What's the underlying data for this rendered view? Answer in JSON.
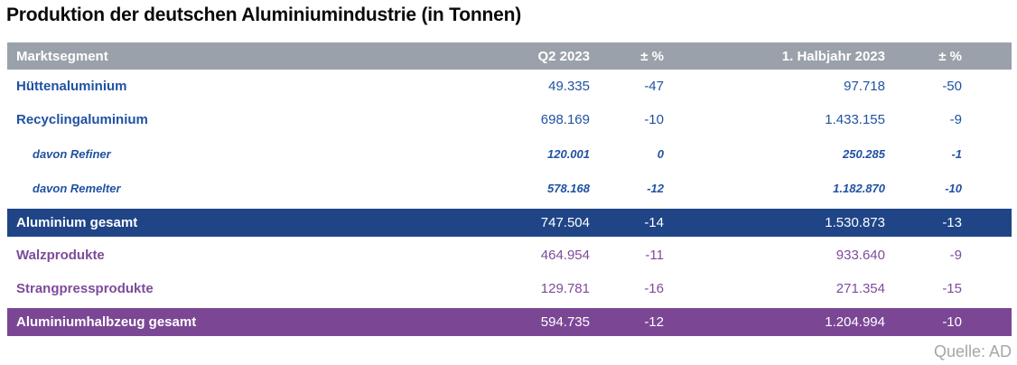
{
  "title": "Produktion der deutschen Aluminiumindustrie (in Tonnen)",
  "source": "Quelle: AD",
  "colors": {
    "header_bg": "#9BA1AB",
    "header_text": "#ffffff",
    "blue_row_text": "#2052A2",
    "purple_row_text": "#7E4B9C",
    "total_blue_bg": "#1F4587",
    "total_purple_bg": "#7B4795",
    "total_text": "#ffffff",
    "source_text": "#A6A6A6",
    "title_text": "#0a0a0a"
  },
  "table": {
    "columns": [
      "Marktsegment",
      "Q2 2023",
      "± %",
      "1. Halbjahr 2023",
      "± %"
    ],
    "rows": [
      {
        "label": "Hüttenaluminium",
        "q2": "49.335",
        "q2_pct": "-47",
        "h1": "97.718",
        "h1_pct": "-50",
        "style": "blue"
      },
      {
        "label": "Recyclingaluminium",
        "q2": "698.169",
        "q2_pct": "-10",
        "h1": "1.433.155",
        "h1_pct": "-9",
        "style": "blue"
      },
      {
        "label": "davon Refiner",
        "q2": "120.001",
        "q2_pct": "0",
        "h1": "250.285",
        "h1_pct": "-1",
        "style": "blue-sub"
      },
      {
        "label": "davon Remelter",
        "q2": "578.168",
        "q2_pct": "-12",
        "h1": "1.182.870",
        "h1_pct": "-10",
        "style": "blue-sub"
      },
      {
        "label": "Aluminium gesamt",
        "q2": "747.504",
        "q2_pct": "-14",
        "h1": "1.530.873",
        "h1_pct": "-13",
        "style": "total-blue"
      },
      {
        "label": "Walzprodukte",
        "q2": "464.954",
        "q2_pct": "-11",
        "h1": "933.640",
        "h1_pct": "-9",
        "style": "purple"
      },
      {
        "label": "Strangpressprodukte",
        "q2": "129.781",
        "q2_pct": "-16",
        "h1": "271.354",
        "h1_pct": "-15",
        "style": "purple"
      },
      {
        "label": "Aluminiumhalbzeug gesamt",
        "q2": "594.735",
        "q2_pct": "-12",
        "h1": "1.204.994",
        "h1_pct": "-10",
        "style": "total-purple"
      }
    ]
  },
  "chart_data": {
    "type": "table",
    "title": "Produktion der deutschen Aluminiumindustrie (in Tonnen)",
    "columns": [
      "Marktsegment",
      "Q2 2023",
      "± %",
      "1. Halbjahr 2023",
      "± %"
    ],
    "rows": [
      [
        "Hüttenaluminium",
        49335,
        -47,
        97718,
        -50
      ],
      [
        "Recyclingaluminium",
        698169,
        -10,
        1433155,
        -9
      ],
      [
        "davon Refiner",
        120001,
        0,
        250285,
        -1
      ],
      [
        "davon Remelter",
        578168,
        -12,
        1182870,
        -10
      ],
      [
        "Aluminium gesamt",
        747504,
        -14,
        1530873,
        -13
      ],
      [
        "Walzprodukte",
        464954,
        -11,
        933640,
        -9
      ],
      [
        "Strangpressprodukte",
        129781,
        -16,
        271354,
        -15
      ],
      [
        "Aluminiumhalbzeug gesamt",
        594735,
        -12,
        1204994,
        -10
      ]
    ],
    "units": "Tonnen",
    "source": "Quelle: AD",
    "notes": "Rows 'Aluminium gesamt' and 'Aluminiumhalbzeug gesamt' are highlighted total rows; 'davon' rows are italic sub-breakdowns of Recyclingaluminium."
  }
}
